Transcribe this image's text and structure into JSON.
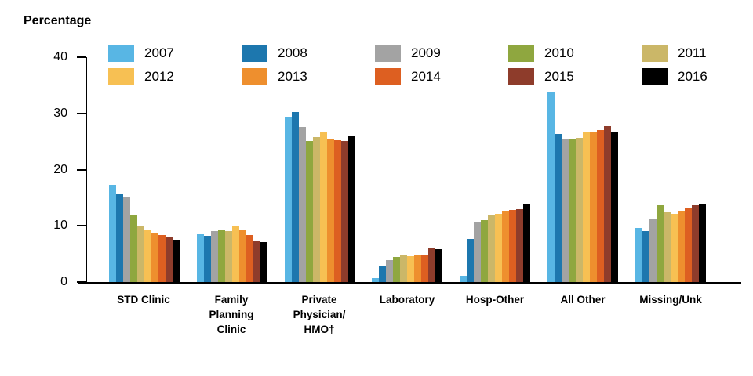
{
  "chart_data": {
    "type": "bar",
    "title": "",
    "ylabel": "Percentage",
    "xlabel": "",
    "ylim": [
      0,
      40
    ],
    "yticks": [
      0,
      10,
      20,
      30,
      40
    ],
    "grid": false,
    "legend_position": "top",
    "categories": [
      "STD Clinic",
      "Family\nPlanning\nClinic",
      "Private\nPhysician/\nHMO†",
      "Laboratory",
      "Hosp-Other",
      "All Other",
      "Missing/Unk"
    ],
    "series": [
      {
        "name": "2007",
        "color": "#58B6E4",
        "values": [
          17.3,
          8.5,
          29.4,
          0.7,
          1.1,
          33.8,
          9.6
        ]
      },
      {
        "name": "2008",
        "color": "#1D77AE",
        "values": [
          15.6,
          8.2,
          30.3,
          3.0,
          7.7,
          26.3,
          9.1
        ]
      },
      {
        "name": "2009",
        "color": "#A3A3A3",
        "values": [
          15.0,
          9.0,
          27.6,
          3.9,
          10.6,
          25.4,
          11.2
        ]
      },
      {
        "name": "2010",
        "color": "#8FA73F",
        "values": [
          11.8,
          9.2,
          25.1,
          4.4,
          11.0,
          25.4,
          13.7
        ]
      },
      {
        "name": "2011",
        "color": "#CBB768",
        "values": [
          10.0,
          9.0,
          25.8,
          4.8,
          11.9,
          25.6,
          12.4
        ]
      },
      {
        "name": "2012",
        "color": "#F7C053",
        "values": [
          9.4,
          9.9,
          26.7,
          4.6,
          12.2,
          26.6,
          12.1
        ]
      },
      {
        "name": "2013",
        "color": "#EE8F2E",
        "values": [
          8.8,
          9.3,
          25.4,
          4.7,
          12.5,
          26.6,
          12.7
        ]
      },
      {
        "name": "2014",
        "color": "#DD5F21",
        "values": [
          8.3,
          8.4,
          25.2,
          4.8,
          12.8,
          27.1,
          13.1
        ]
      },
      {
        "name": "2015",
        "color": "#8E3C2B",
        "values": [
          7.9,
          7.2,
          25.1,
          6.2,
          13.0,
          27.8,
          13.7
        ]
      },
      {
        "name": "2016",
        "color": "#000000",
        "values": [
          7.6,
          7.1,
          26.1,
          5.9,
          13.9,
          26.6,
          13.9
        ]
      }
    ]
  }
}
